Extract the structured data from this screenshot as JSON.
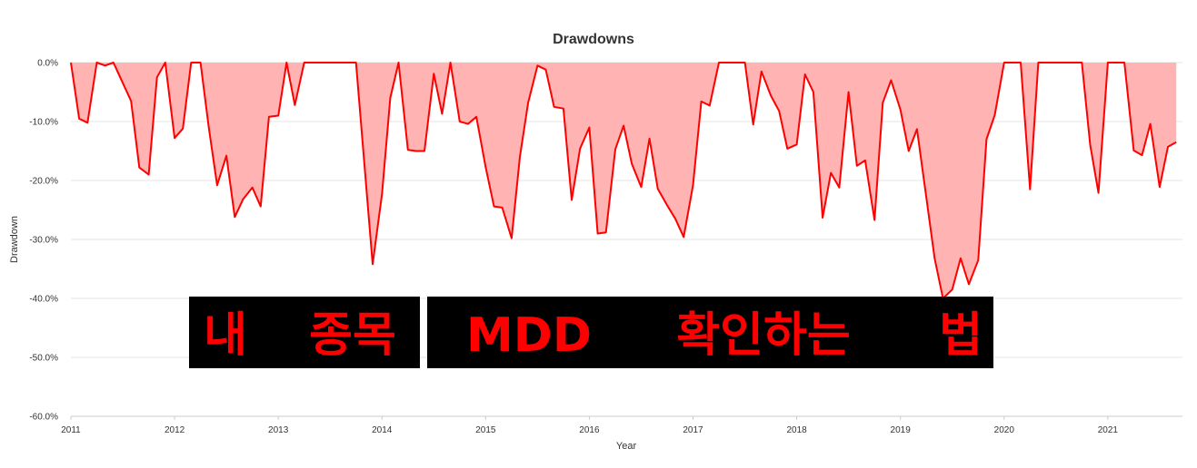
{
  "chart_data": {
    "type": "area",
    "title": "Drawdowns",
    "xlabel": "Year",
    "ylabel": "Drawdown",
    "ylim": [
      -60,
      0
    ],
    "y_ticks": [
      "0.0%",
      "-10.0%",
      "-20.0%",
      "-30.0%",
      "-40.0%",
      "-50.0%",
      "-60.0%"
    ],
    "x_ticks": [
      "2011",
      "2012",
      "2013",
      "2014",
      "2015",
      "2016",
      "2017",
      "2018",
      "2019",
      "2020",
      "2021"
    ],
    "grid": true,
    "line_color": "#ff0000",
    "fill_color": "#ffb3b3",
    "series": [
      {
        "x": [
          2011.0,
          2011.08,
          2011.16,
          2011.25,
          2011.33,
          2011.41,
          2011.58,
          2011.66,
          2011.75,
          2011.83,
          2011.91,
          2012.0,
          2012.08,
          2012.16,
          2012.25,
          2012.33,
          2012.41,
          2012.5,
          2012.58,
          2012.66,
          2012.75,
          2012.83,
          2012.91,
          2013.0,
          2013.08,
          2013.16,
          2013.25,
          2013.75,
          2013.91,
          2014.0,
          2014.08,
          2014.16,
          2014.25,
          2014.33,
          2014.41,
          2014.5,
          2014.58,
          2014.66,
          2014.75,
          2014.83,
          2014.91,
          2015.0,
          2015.08,
          2015.16,
          2015.25,
          2015.33,
          2015.41,
          2015.5,
          2015.58,
          2015.66,
          2015.75,
          2015.83,
          2015.91,
          2016.0,
          2016.08,
          2016.16,
          2016.25,
          2016.33,
          2016.41,
          2016.5,
          2016.58,
          2016.66,
          2016.75,
          2016.83,
          2016.91,
          2017.0,
          2017.08,
          2017.16,
          2017.25,
          2017.5,
          2017.58,
          2017.66,
          2017.75,
          2017.83,
          2017.91,
          2018.0,
          2018.08,
          2018.16,
          2018.25,
          2018.33,
          2018.41,
          2018.5,
          2018.58,
          2018.66,
          2018.75,
          2018.83,
          2018.91,
          2019.0,
          2019.08,
          2019.16,
          2019.25,
          2019.33,
          2019.41,
          2019.5,
          2019.58,
          2019.66,
          2019.75,
          2019.83,
          2019.91,
          2020.0,
          2020.16,
          2020.25,
          2020.33,
          2020.75,
          2020.83,
          2020.91,
          2021.0,
          2021.16,
          2021.25,
          2021.33,
          2021.41,
          2021.5,
          2021.58,
          2021.66
        ],
        "y": [
          0,
          -9.5,
          -10.2,
          0,
          -0.5,
          0,
          -6.5,
          -17.8,
          -19,
          -2.5,
          0,
          -12.8,
          -11.2,
          0,
          0,
          -11,
          -20.8,
          -15.8,
          -26.2,
          -23.2,
          -21.2,
          -24.4,
          -9.2,
          -9,
          0,
          -7.2,
          0,
          0,
          -34.2,
          -22.3,
          -6,
          0,
          -14.8,
          -15,
          -15,
          -1.9,
          -8.7,
          0,
          -10,
          -10.4,
          -9.2,
          -17.7,
          -24.4,
          -24.6,
          -29.8,
          -16,
          -6.8,
          -0.5,
          -1.2,
          -7.5,
          -7.8,
          -23.3,
          -14.6,
          -11,
          -29,
          -28.8,
          -14.7,
          -10.7,
          -17.2,
          -21.1,
          -12.9,
          -21.4,
          -24.2,
          -26.5,
          -29.6,
          -20.8,
          -6.6,
          -7.3,
          0,
          0,
          -10.5,
          -1.5,
          -5.6,
          -8.2,
          -14.6,
          -13.9,
          -2,
          -5,
          -26.3,
          -18.7,
          -21.2,
          -5,
          -17.5,
          -16.6,
          -26.7,
          -6.8,
          -3,
          -8,
          -15,
          -11.3,
          -22.9,
          -33.2,
          -40,
          -38.5,
          -33.2,
          -37.6,
          -33.5,
          -13,
          -8.9,
          0,
          0,
          -21.5,
          0,
          0,
          -14,
          -22.1,
          0,
          0,
          -14.9,
          -15.7,
          -10.4,
          -21.1,
          -14.3,
          -13.5
        ]
      }
    ]
  },
  "overlay": {
    "segments": [
      "내",
      "종목",
      "MDD",
      "확인하는",
      "법"
    ]
  }
}
